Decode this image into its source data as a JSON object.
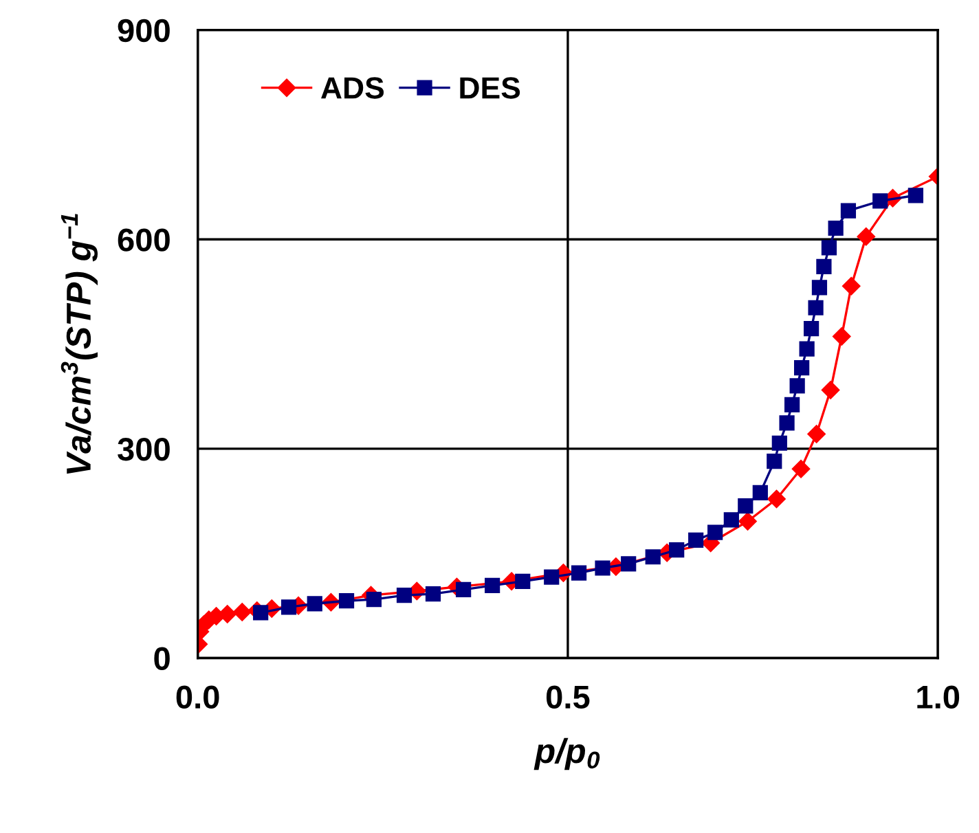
{
  "chart_data": {
    "type": "line",
    "xlabel": "p/p$_{0}$",
    "ylabel": "Va/cm$^{3}$(STP) g$^{−1}$",
    "xlim": [
      0,
      1
    ],
    "ylim": [
      0,
      900
    ],
    "xticks": [
      {
        "value": 0,
        "label": "0.0"
      },
      {
        "value": 0.5,
        "label": "0.5"
      },
      {
        "value": 1,
        "label": "1.0"
      }
    ],
    "yticks": [
      0,
      300,
      600,
      900
    ],
    "grid": true,
    "legend": "top left",
    "series": [
      {
        "name": "ADS",
        "color": "#ff0000",
        "marker": "diamond",
        "x": [
          0.001,
          0.003,
          0.008,
          0.015,
          0.025,
          0.04,
          0.06,
          0.08,
          0.1,
          0.136,
          0.18,
          0.234,
          0.296,
          0.35,
          0.424,
          0.494,
          0.565,
          0.634,
          0.693,
          0.743,
          0.782,
          0.815,
          0.836,
          0.855,
          0.87,
          0.883,
          0.903,
          0.939,
          1.0
        ],
        "values": [
          20,
          38,
          48,
          55,
          60,
          63,
          66,
          68,
          71,
          75,
          80,
          90,
          96,
          102,
          110,
          122,
          131,
          151,
          165,
          196,
          228,
          271,
          321,
          384,
          461,
          533,
          604,
          659,
          690
        ]
      },
      {
        "name": "DES",
        "color": "#000080",
        "marker": "square",
        "x": [
          0.97,
          0.922,
          0.879,
          0.862,
          0.853,
          0.846,
          0.84,
          0.835,
          0.829,
          0.823,
          0.816,
          0.81,
          0.803,
          0.796,
          0.786,
          0.779,
          0.76,
          0.74,
          0.721,
          0.699,
          0.673,
          0.647,
          0.615,
          0.582,
          0.547,
          0.515,
          0.478,
          0.439,
          0.398,
          0.359,
          0.318,
          0.279,
          0.238,
          0.201,
          0.158,
          0.123,
          0.085
        ],
        "values": [
          663,
          655,
          641,
          616,
          588,
          561,
          531,
          502,
          472,
          443,
          416,
          390,
          363,
          337,
          308,
          282,
          237,
          218,
          198,
          180,
          169,
          155,
          145,
          135,
          129,
          122,
          116,
          110,
          104,
          98,
          92,
          90,
          84,
          82,
          78,
          73,
          65
        ]
      }
    ]
  }
}
